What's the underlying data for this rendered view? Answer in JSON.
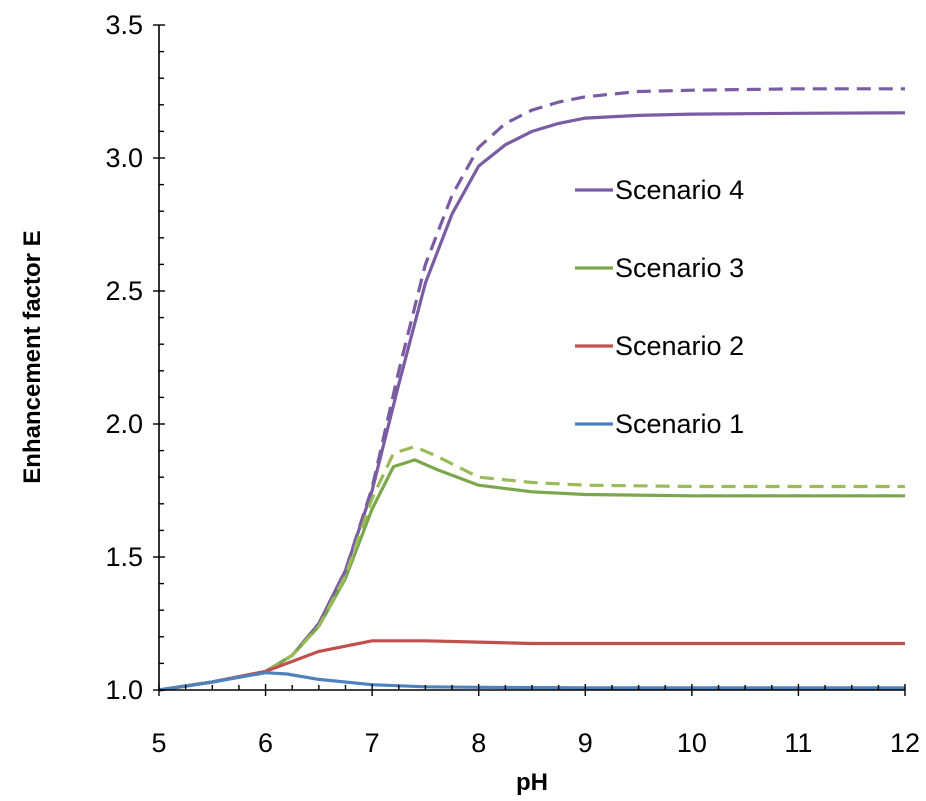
{
  "chart_data": {
    "type": "line",
    "xlabel": "pH",
    "ylabel": "Enhancement factor E",
    "xlim": [
      5,
      12
    ],
    "ylim": [
      1.0,
      3.5
    ],
    "xticks": [
      5,
      6,
      7,
      8,
      9,
      10,
      11,
      12
    ],
    "xtick_labels": [
      "5",
      "6",
      "7",
      "8",
      "9",
      "10",
      "11",
      "12"
    ],
    "yticks": [
      1.0,
      1.5,
      2.0,
      2.5,
      3.0,
      3.5
    ],
    "ytick_labels": [
      "1.0",
      "1.5",
      "2.0",
      "2.5",
      "3.0",
      "3.5"
    ],
    "grid": false,
    "legend_position": "center-right",
    "series": [
      {
        "name": "Scenario 4",
        "color": "#7a5ca3",
        "style": "solid",
        "x": [
          5.0,
          5.5,
          6.0,
          6.25,
          6.5,
          6.75,
          7.0,
          7.25,
          7.5,
          7.75,
          8.0,
          8.25,
          8.5,
          8.75,
          9.0,
          9.5,
          10.0,
          11.0,
          12.0
        ],
        "y": [
          1.0,
          1.03,
          1.07,
          1.13,
          1.25,
          1.45,
          1.75,
          2.15,
          2.53,
          2.79,
          2.97,
          3.05,
          3.1,
          3.13,
          3.15,
          3.16,
          3.165,
          3.168,
          3.17
        ]
      },
      {
        "name": "",
        "color": "#7a5ca3",
        "style": "dashed",
        "x": [
          5.0,
          5.5,
          6.0,
          6.25,
          6.5,
          6.75,
          7.0,
          7.25,
          7.5,
          7.75,
          8.0,
          8.25,
          8.5,
          8.75,
          9.0,
          9.5,
          10.0,
          11.0,
          12.0
        ],
        "y": [
          1.0,
          1.03,
          1.07,
          1.13,
          1.25,
          1.45,
          1.76,
          2.2,
          2.6,
          2.86,
          3.04,
          3.13,
          3.18,
          3.21,
          3.23,
          3.25,
          3.255,
          3.26,
          3.26
        ]
      },
      {
        "name": "Scenario 3",
        "color": "#7ba74c",
        "style": "solid",
        "x": [
          5.0,
          5.5,
          6.0,
          6.25,
          6.5,
          6.75,
          7.0,
          7.2,
          7.4,
          7.6,
          8.0,
          8.5,
          9.0,
          10.0,
          11.0,
          12.0
        ],
        "y": [
          1.0,
          1.03,
          1.07,
          1.13,
          1.24,
          1.42,
          1.68,
          1.84,
          1.865,
          1.83,
          1.77,
          1.745,
          1.735,
          1.73,
          1.73,
          1.73
        ]
      },
      {
        "name": "",
        "color": "#9bbb59",
        "style": "dashed",
        "x": [
          5.0,
          5.5,
          6.0,
          6.25,
          6.5,
          6.75,
          7.0,
          7.2,
          7.4,
          7.6,
          8.0,
          8.5,
          9.0,
          10.0,
          11.0,
          12.0
        ],
        "y": [
          1.0,
          1.03,
          1.07,
          1.13,
          1.24,
          1.43,
          1.72,
          1.89,
          1.915,
          1.88,
          1.8,
          1.78,
          1.77,
          1.765,
          1.765,
          1.765
        ]
      },
      {
        "name": "Scenario 2",
        "color": "#c0504d",
        "style": "solid",
        "x": [
          5.0,
          5.5,
          6.0,
          6.5,
          7.0,
          7.5,
          8.0,
          8.5,
          9.0,
          10.0,
          11.0,
          12.0
        ],
        "y": [
          1.0,
          1.03,
          1.07,
          1.145,
          1.185,
          1.185,
          1.18,
          1.175,
          1.175,
          1.175,
          1.175,
          1.175
        ]
      },
      {
        "name": "Scenario 1",
        "color": "#4f81bd",
        "style": "solid",
        "x": [
          5.0,
          5.5,
          6.0,
          6.2,
          6.5,
          7.0,
          7.5,
          8.0,
          9.0,
          10.0,
          11.0,
          12.0
        ],
        "y": [
          1.0,
          1.03,
          1.065,
          1.06,
          1.04,
          1.02,
          1.012,
          1.01,
          1.008,
          1.008,
          1.008,
          1.008
        ]
      }
    ],
    "legend": [
      {
        "label": "Scenario 4",
        "color": "#7a5ca3"
      },
      {
        "label": "Scenario 3",
        "color": "#7ba74c"
      },
      {
        "label": "Scenario 2",
        "color": "#c0504d"
      },
      {
        "label": "Scenario 1",
        "color": "#4f81bd"
      }
    ]
  }
}
